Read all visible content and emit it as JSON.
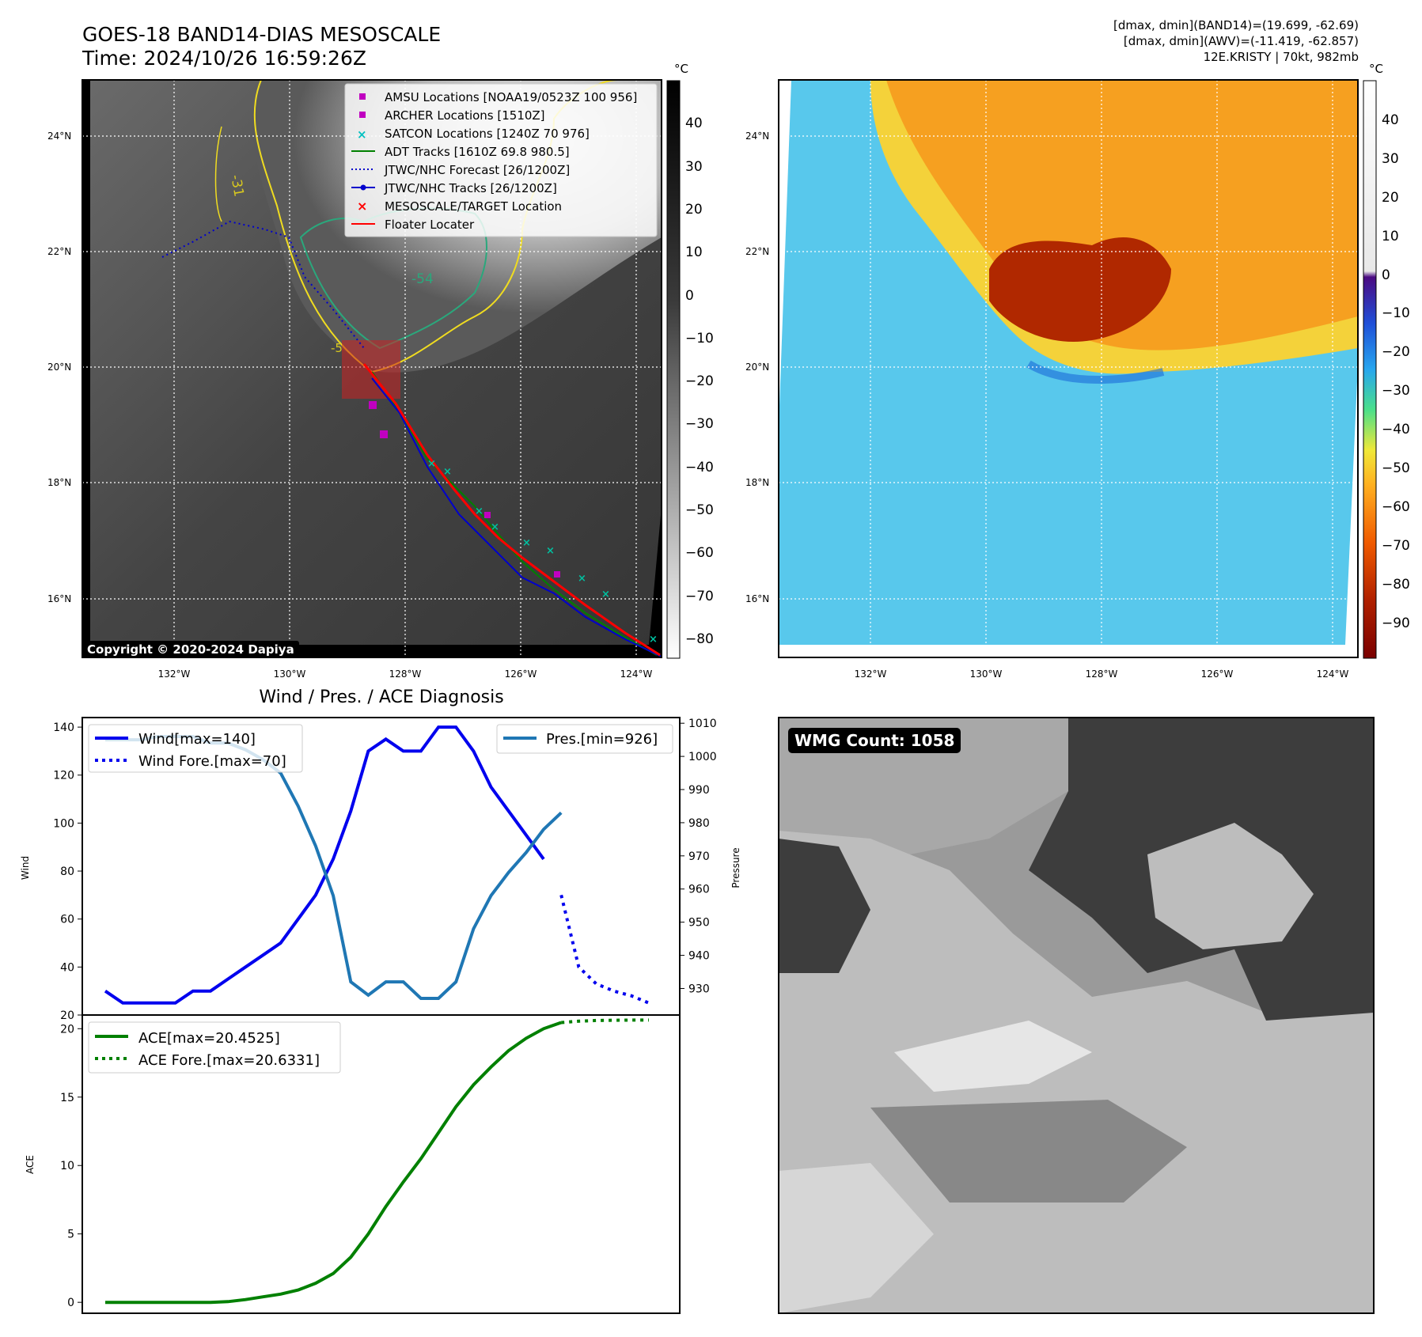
{
  "header": {
    "title_line1": "GOES-18 BAND14-DIAS MESOSCALE",
    "title_line2": "Time: 2024/10/26 16:59:26Z",
    "info_line1": "[dmax, dmin](BAND14)=(19.699, -62.69)",
    "info_line2": "[dmax, dmin](AWV)=(-11.419, -62.857)",
    "info_line3": "12E.KRISTY | 70kt, 982mb"
  },
  "map": {
    "lat_labels": [
      "24°N",
      "22°N",
      "20°N",
      "18°N",
      "16°N"
    ],
    "lon_labels": [
      "132°W",
      "130°W",
      "128°W",
      "126°W",
      "124°W"
    ],
    "copyright": "Copyright © 2020-2024 Dapiya",
    "contour_labels": [
      "-31",
      "-54",
      "-5"
    ],
    "legend": [
      {
        "label": "AMSU Locations [NOAA19/0523Z 100 956]",
        "kind": "square",
        "color": "#c000c0"
      },
      {
        "label": "ARCHER Locations [1510Z]",
        "kind": "square",
        "color": "#c000c0"
      },
      {
        "label": "SATCON Locations [1240Z 70 976]",
        "kind": "x",
        "color": "#00c0c0"
      },
      {
        "label": "ADT Tracks [1610Z 69.8 980.5]",
        "kind": "line",
        "color": "#008000"
      },
      {
        "label": "JTWC/NHC Forecast [26/1200Z]",
        "kind": "dotted",
        "color": "#0000cc"
      },
      {
        "label": "JTWC/NHC Tracks [26/1200Z]",
        "kind": "line-dot",
        "color": "#0000cc"
      },
      {
        "label": "MESOSCALE/TARGET Location",
        "kind": "x",
        "color": "#ff0000"
      },
      {
        "label": "Floater Locater",
        "kind": "line",
        "color": "#ff0000"
      }
    ]
  },
  "colorbar_left": {
    "unit": "°C",
    "ticks": [
      "40",
      "30",
      "20",
      "10",
      "0",
      "−10",
      "−20",
      "−30",
      "−40",
      "−50",
      "−60",
      "−70",
      "−80"
    ]
  },
  "colorbar_right": {
    "unit": "°C",
    "ticks": [
      "40",
      "30",
      "20",
      "10",
      "0",
      "−10",
      "−20",
      "−30",
      "−40",
      "−50",
      "−60",
      "−70",
      "−80",
      "−90"
    ]
  },
  "wmg": {
    "label": "WMG Count: 1058"
  },
  "chart_data": [
    {
      "type": "line",
      "title": "Wind / Pres. / ACE Diagnosis",
      "ylabel": "Wind",
      "y2label": "Pressure",
      "ylim": [
        20,
        143
      ],
      "y2lim": [
        922,
        1011
      ],
      "yticks": [
        "20",
        "40",
        "60",
        "80",
        "100",
        "120",
        "140"
      ],
      "y2ticks": [
        "930",
        "940",
        "950",
        "960",
        "970",
        "980",
        "990",
        "1000",
        "1010"
      ],
      "xlim": [
        0,
        31
      ],
      "x": [
        0,
        1,
        2,
        3,
        4,
        5,
        6,
        7,
        8,
        9,
        10,
        11,
        12,
        13,
        14,
        15,
        16,
        17,
        18,
        19,
        20,
        21,
        22,
        23,
        24,
        25
      ],
      "series": [
        {
          "name": "Wind[max=140]",
          "axis": "left",
          "style": "solid",
          "color": "#0000ee",
          "x": [
            0,
            1,
            2,
            3,
            4,
            5,
            6,
            7,
            8,
            9,
            10,
            11,
            12,
            13,
            14,
            15,
            16,
            17,
            18,
            19,
            20,
            21,
            22,
            23,
            24,
            25
          ],
          "values": [
            30,
            25,
            25,
            25,
            25,
            30,
            30,
            35,
            40,
            45,
            50,
            60,
            70,
            85,
            105,
            130,
            135,
            130,
            130,
            140,
            140,
            130,
            115,
            105,
            95,
            85
          ]
        },
        {
          "name": "Wind Fore.[max=70]",
          "axis": "left",
          "style": "dotted",
          "color": "#0000ee",
          "x": [
            26,
            27,
            28,
            29,
            30,
            31
          ],
          "values": [
            70,
            40,
            33,
            30,
            28,
            25
          ]
        },
        {
          "name": "Pres.[min=926]",
          "axis": "right",
          "style": "solid",
          "color": "#1f77b4",
          "x": [
            0,
            1,
            2,
            3,
            4,
            5,
            6,
            7,
            8,
            9,
            10,
            11,
            12,
            13,
            14,
            15,
            16,
            17,
            18,
            19,
            20,
            21,
            22,
            23,
            24,
            25,
            26
          ],
          "values": [
            1005,
            1005,
            1005,
            1006,
            1006,
            1006,
            1004,
            1004,
            1002,
            999,
            995,
            985,
            973,
            958,
            932,
            928,
            932,
            932,
            927,
            927,
            932,
            948,
            958,
            965,
            971,
            978,
            983
          ]
        }
      ]
    },
    {
      "type": "line",
      "ylabel": "ACE",
      "ylim": [
        -0.8,
        21
      ],
      "yticks": [
        "0",
        "5",
        "10",
        "15",
        "20"
      ],
      "xlim": [
        0,
        31
      ],
      "series": [
        {
          "name": "ACE[max=20.4525]",
          "style": "solid",
          "color": "#008000",
          "x": [
            0,
            1,
            2,
            3,
            4,
            5,
            6,
            7,
            8,
            9,
            10,
            11,
            12,
            13,
            14,
            15,
            16,
            17,
            18,
            19,
            20,
            21,
            22,
            23,
            24,
            25,
            26
          ],
          "values": [
            0,
            0,
            0,
            0,
            0,
            0,
            0,
            0.05,
            0.2,
            0.4,
            0.6,
            0.9,
            1.4,
            2.1,
            3.3,
            5.0,
            7.0,
            8.8,
            10.5,
            12.4,
            14.3,
            15.9,
            17.2,
            18.4,
            19.3,
            20.0,
            20.45
          ]
        },
        {
          "name": "ACE Fore.[max=20.6331]",
          "style": "dotted",
          "color": "#008000",
          "x": [
            26,
            27,
            28,
            29,
            30,
            31
          ],
          "values": [
            20.45,
            20.55,
            20.6,
            20.62,
            20.63,
            20.63
          ]
        }
      ]
    }
  ]
}
